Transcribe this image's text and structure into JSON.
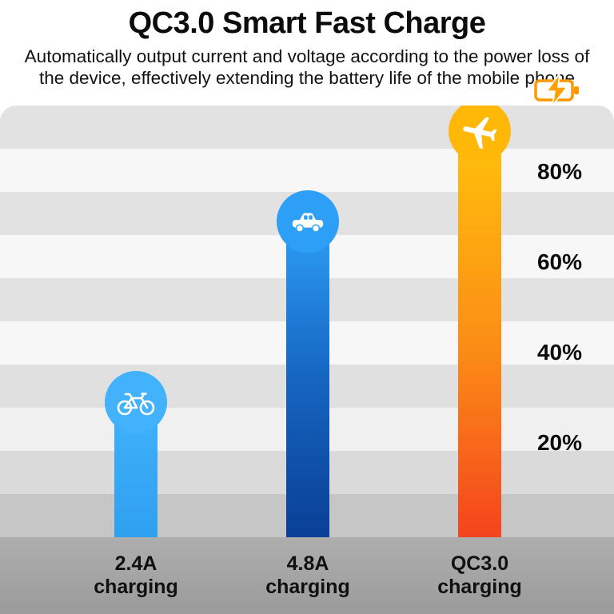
{
  "title": "QC3.0 Smart Fast Charge",
  "subtitle": "Automatically output current and voltage according to the power loss of the device, effectively extending the battery life of the mobile phone",
  "chart_data": {
    "type": "bar",
    "title": "QC3.0 Smart Fast Charge",
    "categories": [
      "2.4A charging",
      "4.8A charging",
      "QC3.0 charging"
    ],
    "values": [
      30,
      70,
      90
    ],
    "value_unit": "percent",
    "ylim": [
      0,
      100
    ],
    "y_ticks": [
      80,
      60,
      40,
      20
    ],
    "y_tick_labels": [
      "80%",
      "60%",
      "40%",
      "20%"
    ],
    "grid": "horizontal alternating gray bands",
    "legend_position": "none",
    "bar_icons": [
      "bicycle-icon",
      "car-icon",
      "airplane-icon"
    ],
    "bar_colors": [
      {
        "top": "#41b2fb",
        "bottom": "#2f9ff0"
      },
      {
        "top": "#2e9ff7",
        "bottom": "#0a3f96"
      },
      {
        "top": "#ffc20a",
        "bottom": "#f4441d"
      }
    ]
  },
  "ticks": [
    "80%",
    "60%",
    "40%",
    "20%"
  ],
  "bars": [
    {
      "label_line1": "2.4A",
      "label_line2": "charging",
      "value": 30,
      "icon": "bicycle-icon"
    },
    {
      "label_line1": "4.8A",
      "label_line2": "charging",
      "value": 70,
      "icon": "car-icon"
    },
    {
      "label_line1": "QC3.0",
      "label_line2": "charging",
      "value": 90,
      "icon": "airplane-icon"
    }
  ],
  "colors": {
    "accent_orange": "#ff9800",
    "bolt_orange": "#ffa000",
    "light_blue": "#41b2fb",
    "deep_blue": "#0a3f96",
    "amber": "#ffc20a",
    "orange_red": "#f4441d",
    "footer_gray": "#a6a6a6",
    "text": "#0c0c0c"
  }
}
